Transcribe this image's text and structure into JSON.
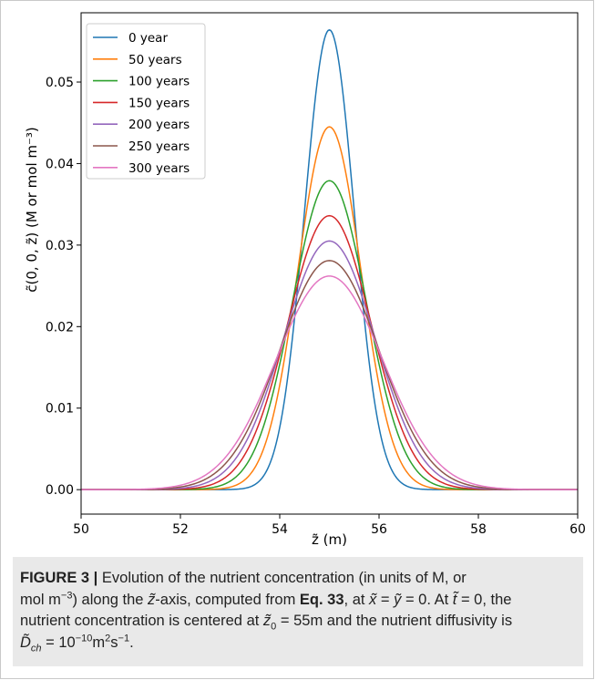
{
  "chart_data": {
    "type": "line",
    "xlabel": "z̃ (m)",
    "ylabel": "c̃(0, 0, z̃) (M or mol m⁻³)",
    "xlim": [
      50,
      60
    ],
    "ylim": [
      -0.003,
      0.0585
    ],
    "xticks": [
      "50",
      "52",
      "54",
      "56",
      "58",
      "60"
    ],
    "yticks": [
      "0.00",
      "0.01",
      "0.02",
      "0.03",
      "0.04",
      "0.05"
    ],
    "center": 55,
    "grid": false,
    "legend_position": "top-left",
    "series": [
      {
        "name": "0 year",
        "color": "#1f77b4",
        "peak": 0.0564,
        "sigma": 0.5
      },
      {
        "name": "50 years",
        "color": "#ff7f0e",
        "peak": 0.0445,
        "sigma": 0.634
      },
      {
        "name": "100 years",
        "color": "#2ca02c",
        "peak": 0.0379,
        "sigma": 0.745
      },
      {
        "name": "150 years",
        "color": "#d62728",
        "peak": 0.0336,
        "sigma": 0.84
      },
      {
        "name": "200 years",
        "color": "#9467bd",
        "peak": 0.0305,
        "sigma": 0.925
      },
      {
        "name": "250 years",
        "color": "#8c564b",
        "peak": 0.0281,
        "sigma": 1.004
      },
      {
        "name": "300 years",
        "color": "#e377c2",
        "peak": 0.0262,
        "sigma": 1.077
      }
    ]
  },
  "caption": {
    "label": "FIGURE 3 |",
    "line1_text": " Evolution of the nutrient concentration (in units of M, or",
    "line2_a": "mol m",
    "line2_sup": "−3",
    "line2_b": ") along the ",
    "line2_var": "z̃",
    "line2_c": "-axis, computed from ",
    "line2_ref": "Eq. 33",
    "line2_d": ", at ",
    "line2_x": "x̃",
    "line2_e": " = ",
    "line2_y": "ỹ",
    "line2_f": " = 0. At ",
    "line2_t": "t̃",
    "line2_g": " = 0, the",
    "line3_a": "nutrient concentration is centered at ",
    "line3_var": "z̃",
    "line3_sub": "0",
    "line3_b": " = 55m and the nutrient diffusivity is",
    "line4_var": "D̃",
    "line4_sub": "ch",
    "line4_a": " = 10",
    "line4_sup1": "−10",
    "line4_b": "m",
    "line4_sup2": "2",
    "line4_c": "s",
    "line4_sup3": "−1",
    "line4_d": "."
  }
}
